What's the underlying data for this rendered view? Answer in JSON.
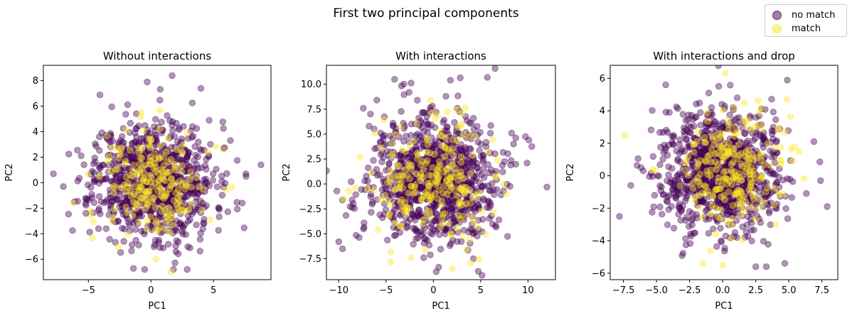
{
  "figure": {
    "title": "First two principal components",
    "legend": {
      "entries": [
        {
          "label": "no match",
          "color": "#440154"
        },
        {
          "label": "match",
          "color": "#fde725"
        }
      ]
    }
  },
  "chart_data": [
    {
      "type": "scatter",
      "title": "Without interactions",
      "xlabel": "PC1",
      "ylabel": "PC2",
      "xlim": [
        -8.6,
        9.6
      ],
      "ylim": [
        -7.6,
        9.2
      ],
      "xticks": [
        -5,
        0,
        5
      ],
      "yticks": [
        -6,
        -4,
        -2,
        0,
        2,
        4,
        6,
        8
      ],
      "grid": false,
      "series": [
        {
          "name": "no match",
          "color": "#440154",
          "n": 900,
          "sx": 2.4,
          "sy": 2.3,
          "cx": 0.2,
          "cy": 0.2,
          "seed": 11
        },
        {
          "name": "match",
          "color": "#fde725",
          "n": 220,
          "sx": 2.0,
          "sy": 2.2,
          "cx": 0.3,
          "cy": -0.2,
          "seed": 12
        }
      ],
      "outliers": [
        {
          "x": -7.8,
          "y": 0.7,
          "c": 0
        },
        {
          "x": 8.8,
          "y": 1.4,
          "c": 0
        },
        {
          "x": -0.3,
          "y": 7.9,
          "c": 0
        },
        {
          "x": 1.7,
          "y": 8.4,
          "c": 0
        },
        {
          "x": 2.9,
          "y": -6.8,
          "c": 0
        },
        {
          "x": -0.5,
          "y": -6.8,
          "c": 0
        },
        {
          "x": 4.0,
          "y": 7.4,
          "c": 0
        },
        {
          "x": 7.3,
          "y": -1.6,
          "c": 0
        },
        {
          "x": -7.0,
          "y": -0.3,
          "c": 0
        },
        {
          "x": 7.6,
          "y": 0.7,
          "c": 0
        },
        {
          "x": -5.2,
          "y": -2.4,
          "c": 0
        },
        {
          "x": 0.4,
          "y": -6.0,
          "c": 1
        },
        {
          "x": -6.2,
          "y": -1.6,
          "c": 1
        }
      ]
    },
    {
      "type": "scatter",
      "title": "With interactions",
      "xlabel": "PC1",
      "ylabel": "PC2",
      "xlim": [
        -11.3,
        12.9
      ],
      "ylim": [
        -9.6,
        11.9
      ],
      "xticks": [
        -10,
        -5,
        0,
        5,
        10
      ],
      "yticks": [
        -7.5,
        -5.0,
        -2.5,
        0.0,
        2.5,
        5.0,
        7.5,
        10.0
      ],
      "grid": false,
      "series": [
        {
          "name": "no match",
          "color": "#440154",
          "n": 1000,
          "sx": 3.4,
          "sy": 3.1,
          "cx": 0.3,
          "cy": 0.4,
          "seed": 21
        },
        {
          "name": "match",
          "color": "#fde725",
          "n": 240,
          "sx": 3.0,
          "sy": 2.9,
          "cx": 0.0,
          "cy": 0.3,
          "seed": 22
        }
      ],
      "outliers": [
        {
          "x": -10.0,
          "y": -5.8,
          "c": 0
        },
        {
          "x": -9.6,
          "y": -6.5,
          "c": 0
        },
        {
          "x": 12.0,
          "y": -0.3,
          "c": 0
        },
        {
          "x": 5.7,
          "y": 10.7,
          "c": 0
        },
        {
          "x": -4.1,
          "y": 10.5,
          "c": 0
        },
        {
          "x": 1.8,
          "y": 10.4,
          "c": 0
        },
        {
          "x": 0.3,
          "y": -8.8,
          "c": 0
        },
        {
          "x": -9.5,
          "y": -1.5,
          "c": 1
        },
        {
          "x": -0.3,
          "y": 8.4,
          "c": 1
        },
        {
          "x": 2.0,
          "y": -8.5,
          "c": 1
        },
        {
          "x": -4.5,
          "y": -6.8,
          "c": 1
        },
        {
          "x": 3.5,
          "y": -6.6,
          "c": 1
        },
        {
          "x": 10.1,
          "y": 4.4,
          "c": 0
        },
        {
          "x": 9.9,
          "y": 2.1,
          "c": 0
        },
        {
          "x": -7.4,
          "y": 7.6,
          "c": 0
        }
      ]
    },
    {
      "type": "scatter",
      "title": "With interactions and drop",
      "xlabel": "PC1",
      "ylabel": "PC2",
      "xlim": [
        -8.5,
        8.7
      ],
      "ylim": [
        -6.4,
        6.8
      ],
      "xticks": [
        -7.5,
        -5.0,
        -2.5,
        0.0,
        2.5,
        5.0,
        7.5
      ],
      "yticks": [
        -6,
        -4,
        -2,
        0,
        2,
        4,
        6
      ],
      "grid": false,
      "series": [
        {
          "name": "no match",
          "color": "#440154",
          "n": 1000,
          "sx": 2.3,
          "sy": 1.8,
          "cx": 0.0,
          "cy": 0.3,
          "seed": 31
        },
        {
          "name": "match",
          "color": "#fde725",
          "n": 240,
          "sx": 2.1,
          "sy": 1.8,
          "cx": 0.5,
          "cy": 0.4,
          "seed": 32
        }
      ],
      "outliers": [
        {
          "x": -7.8,
          "y": -2.5,
          "c": 0
        },
        {
          "x": 7.9,
          "y": -1.9,
          "c": 0
        },
        {
          "x": 0.2,
          "y": 6.3,
          "c": 1
        },
        {
          "x": -7.4,
          "y": 2.5,
          "c": 1
        },
        {
          "x": -4.3,
          "y": 5.6,
          "c": 0
        },
        {
          "x": 2.5,
          "y": -5.6,
          "c": 0
        },
        {
          "x": 3.3,
          "y": -5.6,
          "c": 0
        },
        {
          "x": -1.5,
          "y": -5.4,
          "c": 1
        },
        {
          "x": 0.0,
          "y": -5.5,
          "c": 1
        },
        {
          "x": 4.7,
          "y": -5.4,
          "c": 0
        },
        {
          "x": 7.4,
          "y": -0.3,
          "c": 0
        },
        {
          "x": 6.9,
          "y": 2.1,
          "c": 0
        },
        {
          "x": 1.1,
          "y": 4.8,
          "c": 0
        },
        {
          "x": -6.0,
          "y": 0.3,
          "c": 0
        }
      ]
    }
  ]
}
